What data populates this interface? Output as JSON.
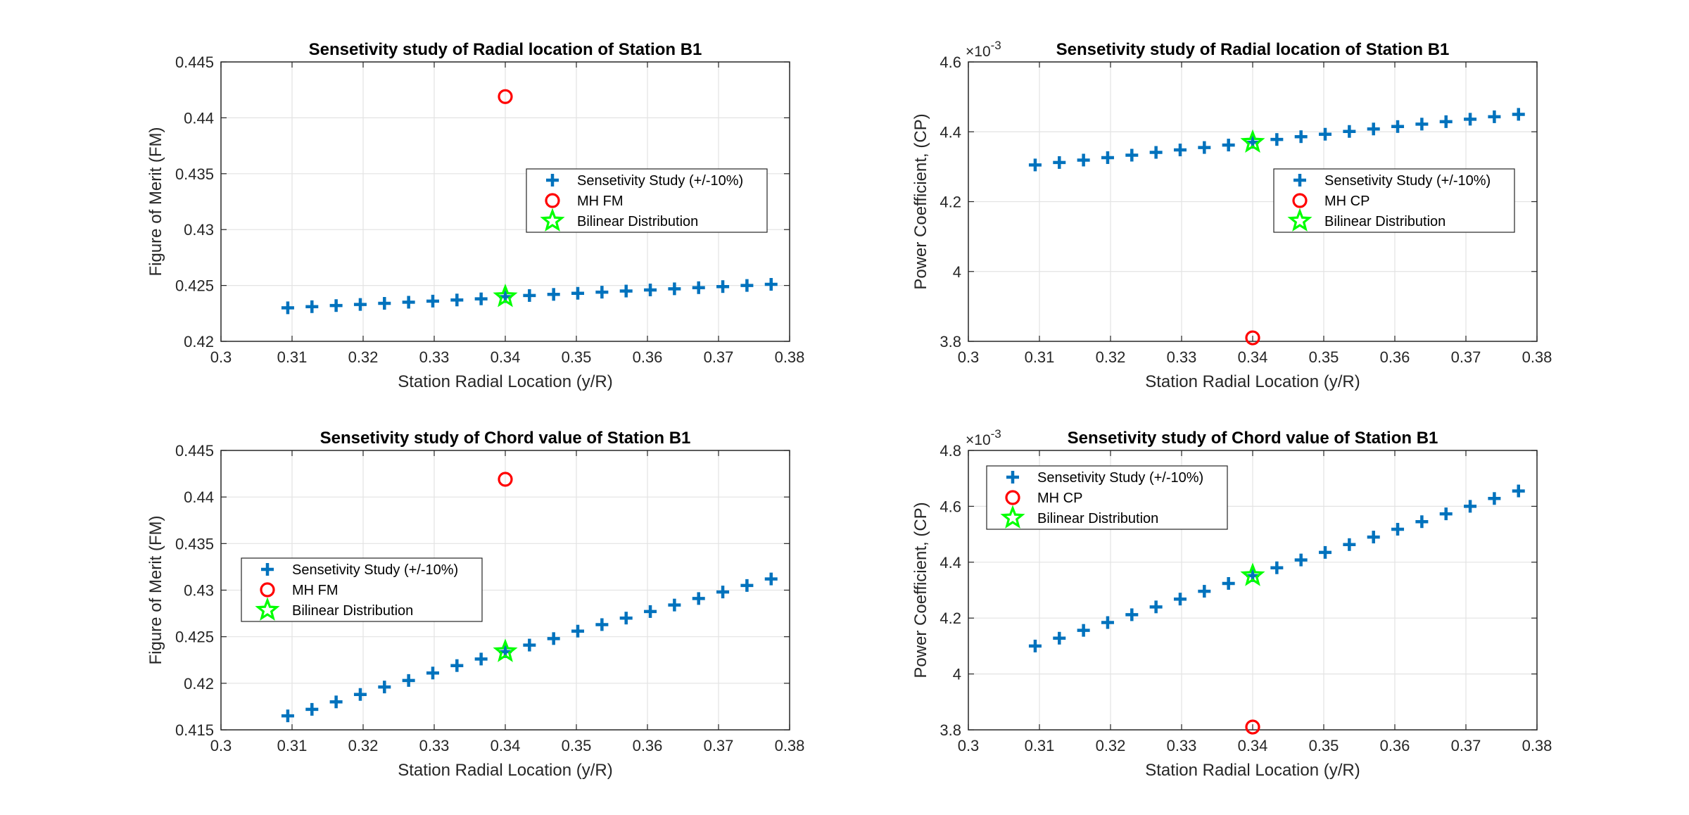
{
  "colors": {
    "sens": "#0072BD",
    "mh": "#FF0000",
    "bilinear": "#00FF00",
    "axis": "#262626"
  },
  "chart_data": [
    {
      "type": "scatter",
      "title": "Sensetivity study of Radial location of Station B1",
      "xlabel": "Station Radial Location (y/R)",
      "ylabel": "Figure of Merit (FM)",
      "xlim": [
        0.3,
        0.38
      ],
      "ylim": [
        0.42,
        0.445
      ],
      "xticks": [
        0.3,
        0.31,
        0.32,
        0.33,
        0.34,
        0.35,
        0.36,
        0.37,
        0.38
      ],
      "xtick_labels": [
        "0.3",
        "0.31",
        "0.32",
        "0.33",
        "0.34",
        "0.35",
        "0.36",
        "0.37",
        "0.38"
      ],
      "yticks": [
        0.42,
        0.425,
        0.43,
        0.435,
        0.44,
        0.445
      ],
      "ytick_labels": [
        "0.42",
        "0.425",
        "0.43",
        "0.435",
        "0.44",
        "0.445"
      ],
      "exponent_label": "",
      "grid": true,
      "legend_position": "right-middle",
      "series": [
        {
          "name": "Sensetivity Study (+/-10%)",
          "marker": "plus",
          "color": "#0072BD",
          "x": [
            0.3094,
            0.3128,
            0.3162,
            0.3196,
            0.323,
            0.3264,
            0.3298,
            0.3332,
            0.3366,
            0.34,
            0.3434,
            0.3468,
            0.3502,
            0.3536,
            0.357,
            0.3604,
            0.3638,
            0.3672,
            0.3706,
            0.374,
            0.3774
          ],
          "y": [
            0.423,
            0.4231,
            0.4232,
            0.4233,
            0.4234,
            0.4235,
            0.4236,
            0.4237,
            0.4238,
            0.424,
            0.4241,
            0.4242,
            0.4243,
            0.4244,
            0.4245,
            0.4246,
            0.4247,
            0.4248,
            0.4249,
            0.425,
            0.4251
          ]
        },
        {
          "name": "MH FM",
          "marker": "circle",
          "color": "#FF0000",
          "x": [
            0.34
          ],
          "y": [
            0.4419
          ]
        },
        {
          "name": "Bilinear Distribution",
          "marker": "star",
          "color": "#00FF00",
          "x": [
            0.34
          ],
          "y": [
            0.424
          ]
        }
      ]
    },
    {
      "type": "scatter",
      "title": "Sensetivity study of Radial location of Station B1",
      "xlabel": "Station Radial Location (y/R)",
      "ylabel": "Power Coefficient, (CP)",
      "xlim": [
        0.3,
        0.38
      ],
      "ylim": [
        3.8,
        4.6
      ],
      "xticks": [
        0.3,
        0.31,
        0.32,
        0.33,
        0.34,
        0.35,
        0.36,
        0.37,
        0.38
      ],
      "xtick_labels": [
        "0.3",
        "0.31",
        "0.32",
        "0.33",
        "0.34",
        "0.35",
        "0.36",
        "0.37",
        "0.38"
      ],
      "yticks": [
        3.8,
        4.0,
        4.2,
        4.4,
        4.6
      ],
      "ytick_labels": [
        "3.8",
        "4",
        "4.2",
        "4.4",
        "4.6"
      ],
      "exponent_label": "×10",
      "exponent_power": "-3",
      "grid": true,
      "legend_position": "right-middle",
      "series": [
        {
          "name": "Sensetivity Study (+/-10%)",
          "marker": "plus",
          "color": "#0072BD",
          "x": [
            0.3094,
            0.3128,
            0.3162,
            0.3196,
            0.323,
            0.3264,
            0.3298,
            0.3332,
            0.3366,
            0.34,
            0.3434,
            0.3468,
            0.3502,
            0.3536,
            0.357,
            0.3604,
            0.3638,
            0.3672,
            0.3706,
            0.374,
            0.3774
          ],
          "y": [
            4.305,
            4.312,
            4.319,
            4.326,
            4.333,
            4.341,
            4.348,
            4.355,
            4.362,
            4.37,
            4.378,
            4.386,
            4.393,
            4.401,
            4.408,
            4.415,
            4.422,
            4.429,
            4.436,
            4.443,
            4.45
          ]
        },
        {
          "name": "MH CP",
          "marker": "circle",
          "color": "#FF0000",
          "x": [
            0.34
          ],
          "y": [
            3.81
          ]
        },
        {
          "name": "Bilinear Distribution",
          "marker": "star",
          "color": "#00FF00",
          "x": [
            0.34
          ],
          "y": [
            4.37
          ]
        }
      ]
    },
    {
      "type": "scatter",
      "title": "Sensetivity study of Chord value of Station B1",
      "xlabel": "Station Radial Location (y/R)",
      "ylabel": "Figure of Merit (FM)",
      "xlim": [
        0.3,
        0.38
      ],
      "ylim": [
        0.415,
        0.445
      ],
      "xticks": [
        0.3,
        0.31,
        0.32,
        0.33,
        0.34,
        0.35,
        0.36,
        0.37,
        0.38
      ],
      "xtick_labels": [
        "0.3",
        "0.31",
        "0.32",
        "0.33",
        "0.34",
        "0.35",
        "0.36",
        "0.37",
        "0.38"
      ],
      "yticks": [
        0.415,
        0.42,
        0.425,
        0.43,
        0.435,
        0.44,
        0.445
      ],
      "ytick_labels": [
        "0.415",
        "0.42",
        "0.425",
        "0.43",
        "0.435",
        "0.44",
        "0.445"
      ],
      "exponent_label": "",
      "grid": true,
      "legend_position": "left-middle",
      "series": [
        {
          "name": "Sensetivity Study (+/-10%)",
          "marker": "plus",
          "color": "#0072BD",
          "x": [
            0.3094,
            0.3128,
            0.3162,
            0.3196,
            0.323,
            0.3264,
            0.3298,
            0.3332,
            0.3366,
            0.34,
            0.3434,
            0.3468,
            0.3502,
            0.3536,
            0.357,
            0.3604,
            0.3638,
            0.3672,
            0.3706,
            0.374,
            0.3774
          ],
          "y": [
            0.4165,
            0.4172,
            0.418,
            0.4188,
            0.4196,
            0.4203,
            0.4211,
            0.4219,
            0.4226,
            0.4234,
            0.4241,
            0.4248,
            0.4256,
            0.4263,
            0.427,
            0.4277,
            0.4284,
            0.4291,
            0.4298,
            0.4305,
            0.4312
          ]
        },
        {
          "name": "MH FM",
          "marker": "circle",
          "color": "#FF0000",
          "x": [
            0.34
          ],
          "y": [
            0.4419
          ]
        },
        {
          "name": "Bilinear Distribution",
          "marker": "star",
          "color": "#00FF00",
          "x": [
            0.34
          ],
          "y": [
            0.4234
          ]
        }
      ]
    },
    {
      "type": "scatter",
      "title": "Sensetivity study of Chord value of Station B1",
      "xlabel": "Station Radial Location (y/R)",
      "ylabel": "Power Coefficient, (CP)",
      "xlim": [
        0.3,
        0.38
      ],
      "ylim": [
        3.8,
        4.8
      ],
      "xticks": [
        0.3,
        0.31,
        0.32,
        0.33,
        0.34,
        0.35,
        0.36,
        0.37,
        0.38
      ],
      "xtick_labels": [
        "0.3",
        "0.31",
        "0.32",
        "0.33",
        "0.34",
        "0.35",
        "0.36",
        "0.37",
        "0.38"
      ],
      "yticks": [
        3.8,
        4.0,
        4.2,
        4.4,
        4.6,
        4.8
      ],
      "ytick_labels": [
        "3.8",
        "4",
        "4.2",
        "4.4",
        "4.6",
        "4.8"
      ],
      "exponent_label": "×10",
      "exponent_power": "-3",
      "grid": true,
      "legend_position": "top-left",
      "series": [
        {
          "name": "Sensetivity Study (+/-10%)",
          "marker": "plus",
          "color": "#0072BD",
          "x": [
            0.3094,
            0.3128,
            0.3162,
            0.3196,
            0.323,
            0.3264,
            0.3298,
            0.3332,
            0.3366,
            0.34,
            0.3434,
            0.3468,
            0.3502,
            0.3536,
            0.357,
            0.3604,
            0.3638,
            0.3672,
            0.3706,
            0.374,
            0.3774
          ],
          "y": [
            4.1,
            4.128,
            4.156,
            4.184,
            4.212,
            4.24,
            4.268,
            4.296,
            4.324,
            4.352,
            4.38,
            4.408,
            4.435,
            4.463,
            4.49,
            4.518,
            4.545,
            4.573,
            4.6,
            4.628,
            4.655
          ]
        },
        {
          "name": "MH CP",
          "marker": "circle",
          "color": "#FF0000",
          "x": [
            0.34
          ],
          "y": [
            3.81
          ]
        },
        {
          "name": "Bilinear Distribution",
          "marker": "star",
          "color": "#00FF00",
          "x": [
            0.34
          ],
          "y": [
            4.352
          ]
        }
      ]
    }
  ]
}
